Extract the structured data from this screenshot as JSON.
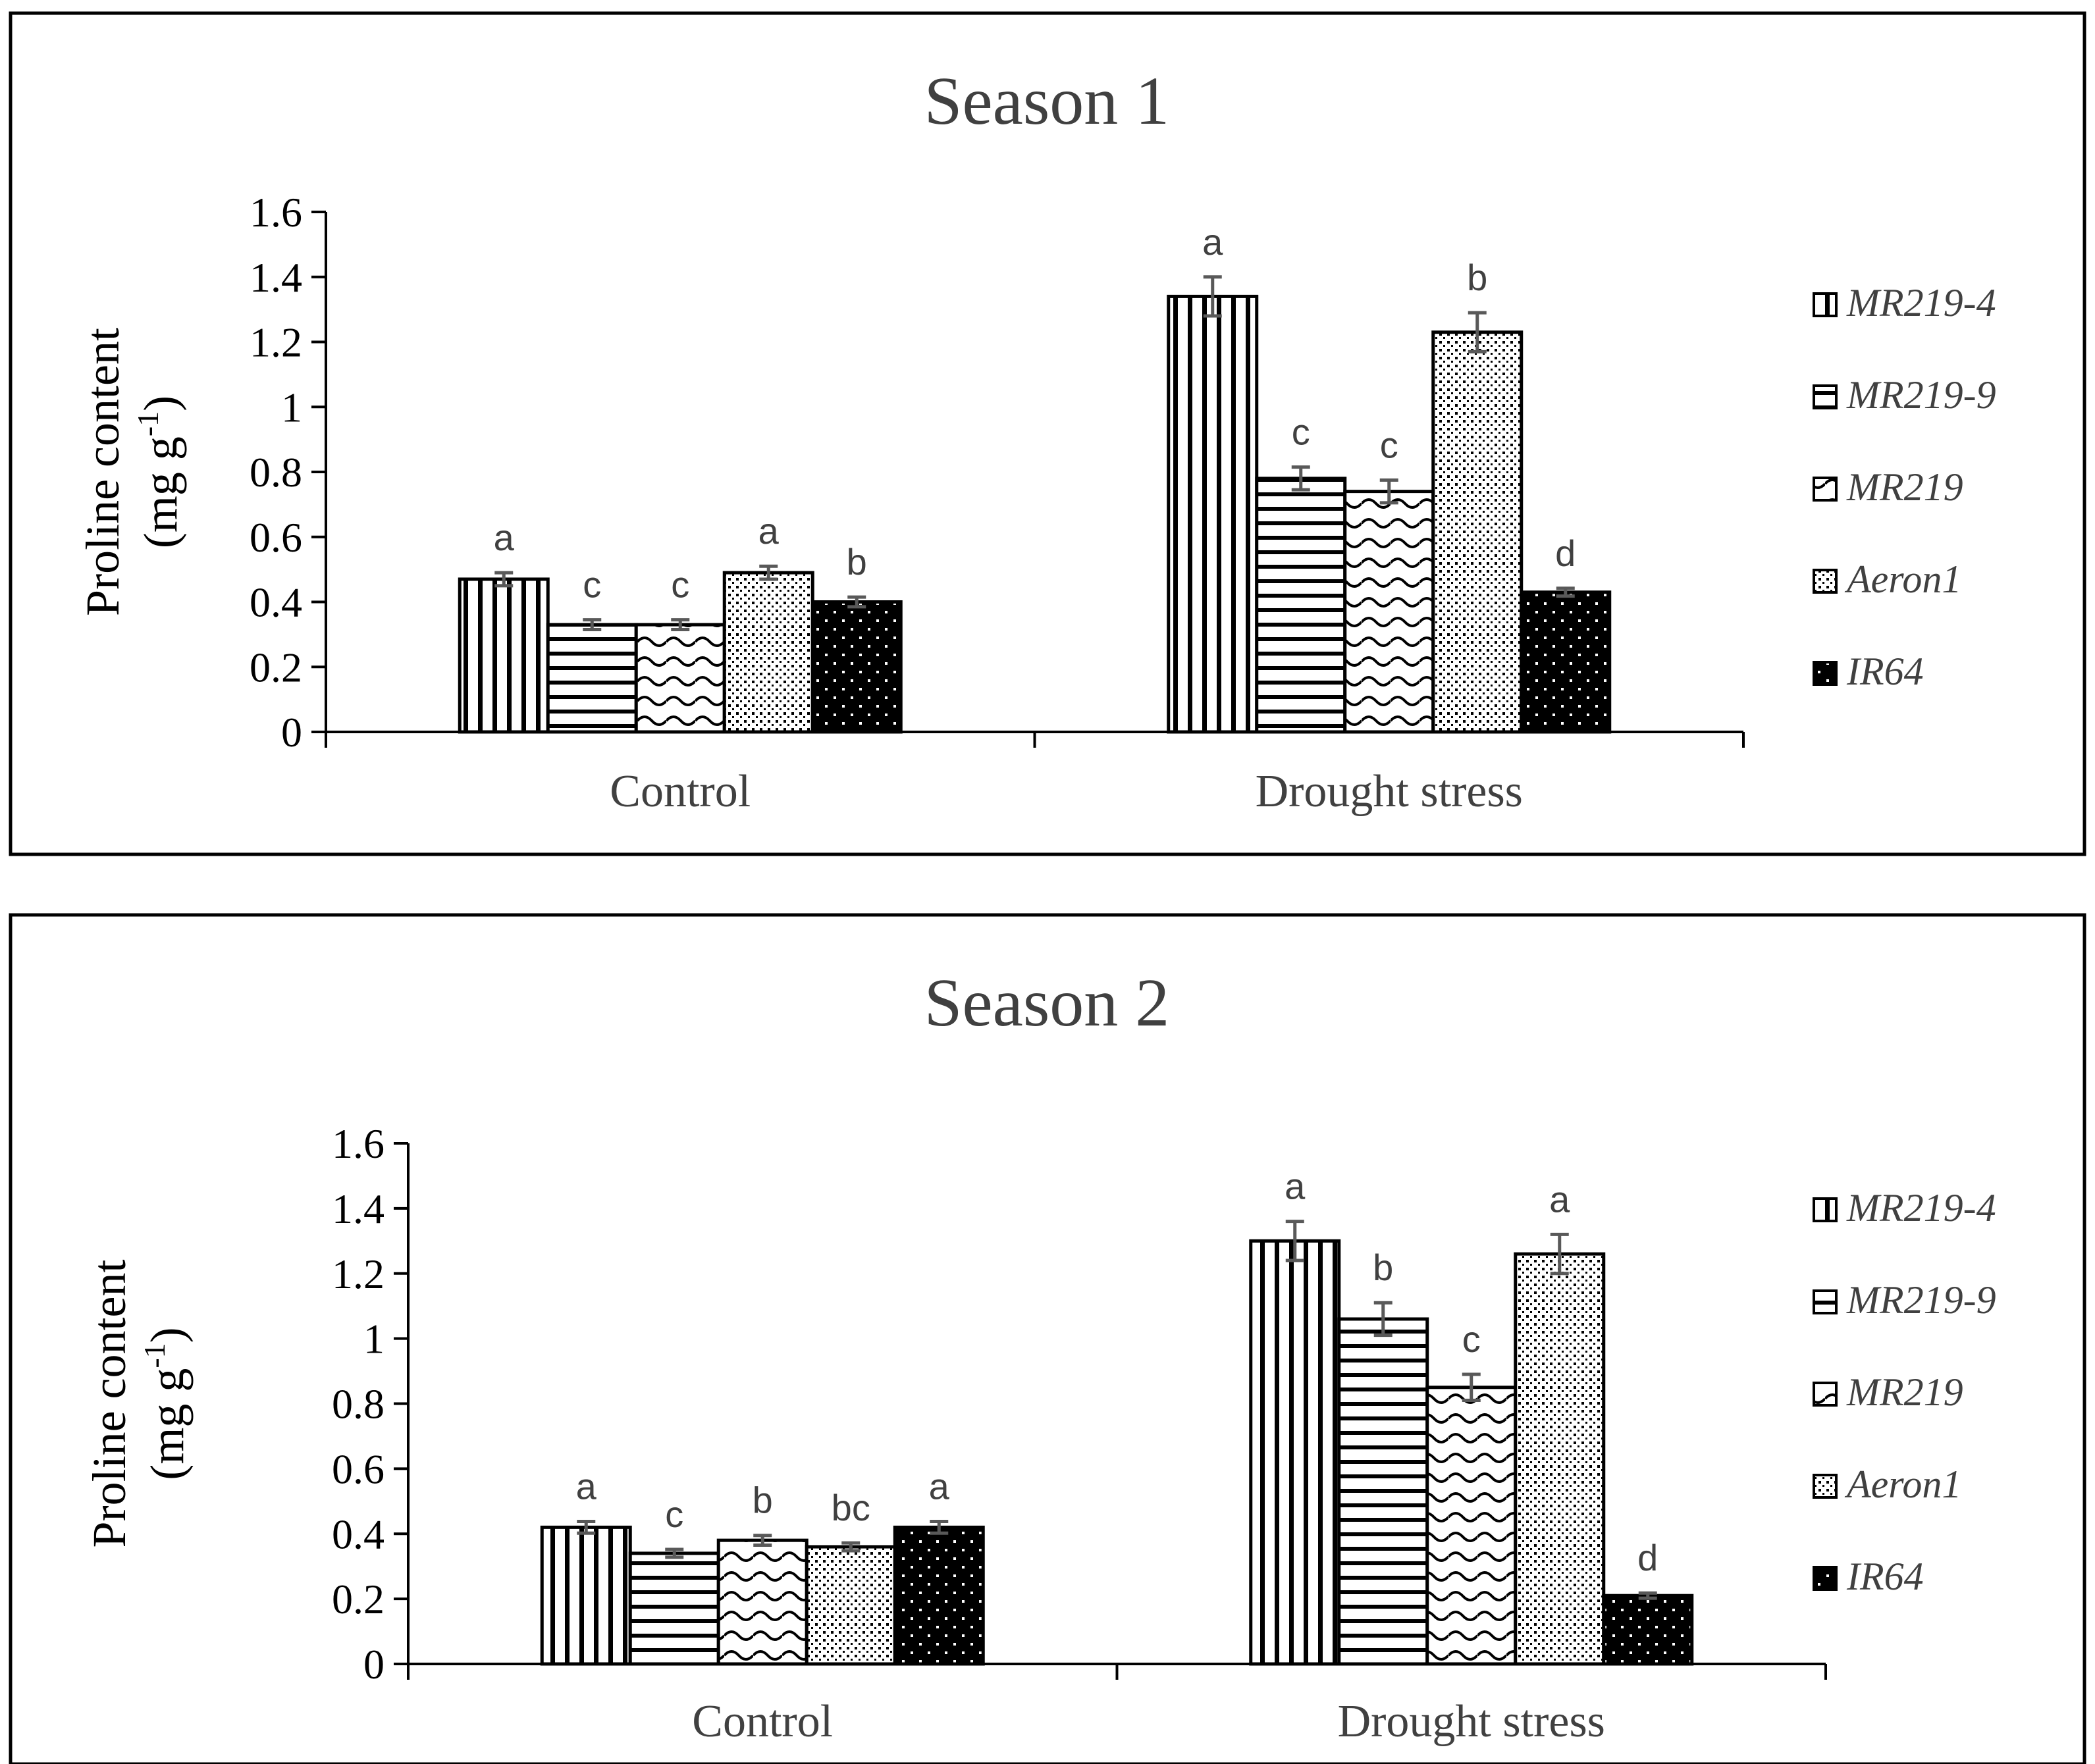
{
  "chart_data": [
    {
      "type": "bar",
      "title": "Season 1",
      "ylabel_line1": "Proline content",
      "ylabel_line2": "(mg g",
      "ylabel_sup": "-1",
      "ylabel_close": ")",
      "xlabel": "",
      "ylim": [
        0,
        1.6
      ],
      "yticks": [
        "0",
        "0.2",
        "0.4",
        "0.6",
        "0.8",
        "1",
        "1.2",
        "1.4",
        "1.6"
      ],
      "categories": [
        "Control",
        "Drought stress"
      ],
      "legend_position": "right",
      "series": [
        {
          "name": "MR219-4",
          "pattern": "vertical",
          "values": [
            0.47,
            1.34
          ],
          "errors": [
            0.02,
            0.06
          ],
          "letters": [
            "a",
            "a"
          ]
        },
        {
          "name": "MR219-9",
          "pattern": "horizontal",
          "values": [
            0.33,
            0.78
          ],
          "errors": [
            0.015,
            0.035
          ],
          "letters": [
            "c",
            "c"
          ]
        },
        {
          "name": "MR219",
          "pattern": "wave",
          "values": [
            0.33,
            0.74
          ],
          "errors": [
            0.015,
            0.035
          ],
          "letters": [
            "c",
            "c"
          ]
        },
        {
          "name": "Aeron1",
          "pattern": "dots-dense",
          "values": [
            0.49,
            1.23
          ],
          "errors": [
            0.02,
            0.06
          ],
          "letters": [
            "a",
            "b"
          ]
        },
        {
          "name": "IR64",
          "pattern": "dark-dots",
          "values": [
            0.4,
            0.43
          ],
          "errors": [
            0.015,
            0.012
          ],
          "letters": [
            "b",
            "d"
          ]
        }
      ]
    },
    {
      "type": "bar",
      "title": "Season 2",
      "ylabel_line1": "Proline content",
      "ylabel_line2": "(mg g",
      "ylabel_sup": "-1",
      "ylabel_close": ")",
      "xlabel": "",
      "ylim": [
        0,
        1.6
      ],
      "yticks": [
        "0",
        "0.2",
        "0.4",
        "0.6",
        "0.8",
        "1",
        "1.2",
        "1.4",
        "1.6"
      ],
      "categories": [
        "Control",
        "Drought stress"
      ],
      "legend_position": "right",
      "series": [
        {
          "name": "MR219-4",
          "pattern": "vertical",
          "values": [
            0.42,
            1.3
          ],
          "errors": [
            0.018,
            0.06
          ],
          "letters": [
            "a",
            "a"
          ]
        },
        {
          "name": "MR219-9",
          "pattern": "horizontal",
          "values": [
            0.34,
            1.06
          ],
          "errors": [
            0.012,
            0.05
          ],
          "letters": [
            "c",
            "b"
          ]
        },
        {
          "name": "MR219",
          "pattern": "wave",
          "values": [
            0.38,
            0.85
          ],
          "errors": [
            0.015,
            0.04
          ],
          "letters": [
            "b",
            "c"
          ]
        },
        {
          "name": "Aeron1",
          "pattern": "dots-dense",
          "values": [
            0.36,
            1.26
          ],
          "errors": [
            0.012,
            0.06
          ],
          "letters": [
            "bc",
            "a"
          ]
        },
        {
          "name": "IR64",
          "pattern": "dark-dots",
          "values": [
            0.42,
            0.21
          ],
          "errors": [
            0.018,
            0.008
          ],
          "letters": [
            "a",
            "d"
          ]
        }
      ]
    }
  ]
}
